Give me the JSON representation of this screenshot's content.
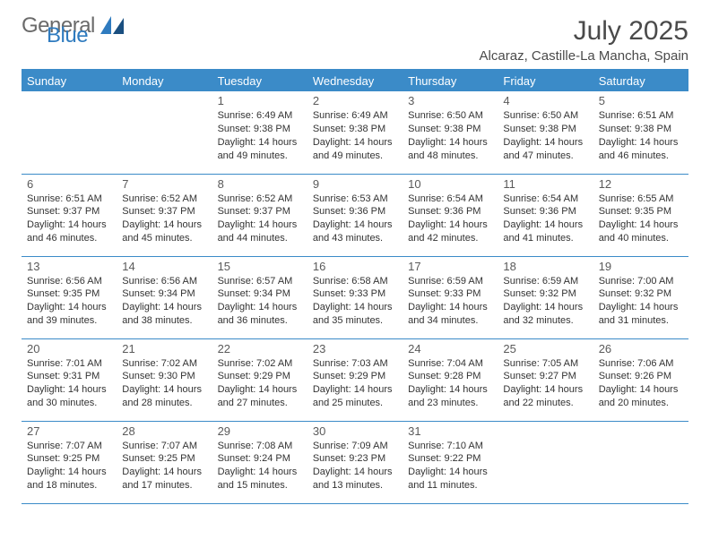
{
  "logo": {
    "text1": "General",
    "text2": "Blue"
  },
  "colors": {
    "accent": "#3b8bc8",
    "body_text": "#333333",
    "title_text": "#4a4a4a"
  },
  "title": "July 2025",
  "subtitle": "Alcaraz, Castille-La Mancha, Spain",
  "weekdays": [
    "Sunday",
    "Monday",
    "Tuesday",
    "Wednesday",
    "Thursday",
    "Friday",
    "Saturday"
  ],
  "weeks": [
    [
      null,
      null,
      {
        "n": "1",
        "sr": "Sunrise: 6:49 AM",
        "ss": "Sunset: 9:38 PM",
        "d1": "Daylight: 14 hours",
        "d2": "and 49 minutes."
      },
      {
        "n": "2",
        "sr": "Sunrise: 6:49 AM",
        "ss": "Sunset: 9:38 PM",
        "d1": "Daylight: 14 hours",
        "d2": "and 49 minutes."
      },
      {
        "n": "3",
        "sr": "Sunrise: 6:50 AM",
        "ss": "Sunset: 9:38 PM",
        "d1": "Daylight: 14 hours",
        "d2": "and 48 minutes."
      },
      {
        "n": "4",
        "sr": "Sunrise: 6:50 AM",
        "ss": "Sunset: 9:38 PM",
        "d1": "Daylight: 14 hours",
        "d2": "and 47 minutes."
      },
      {
        "n": "5",
        "sr": "Sunrise: 6:51 AM",
        "ss": "Sunset: 9:38 PM",
        "d1": "Daylight: 14 hours",
        "d2": "and 46 minutes."
      }
    ],
    [
      {
        "n": "6",
        "sr": "Sunrise: 6:51 AM",
        "ss": "Sunset: 9:37 PM",
        "d1": "Daylight: 14 hours",
        "d2": "and 46 minutes."
      },
      {
        "n": "7",
        "sr": "Sunrise: 6:52 AM",
        "ss": "Sunset: 9:37 PM",
        "d1": "Daylight: 14 hours",
        "d2": "and 45 minutes."
      },
      {
        "n": "8",
        "sr": "Sunrise: 6:52 AM",
        "ss": "Sunset: 9:37 PM",
        "d1": "Daylight: 14 hours",
        "d2": "and 44 minutes."
      },
      {
        "n": "9",
        "sr": "Sunrise: 6:53 AM",
        "ss": "Sunset: 9:36 PM",
        "d1": "Daylight: 14 hours",
        "d2": "and 43 minutes."
      },
      {
        "n": "10",
        "sr": "Sunrise: 6:54 AM",
        "ss": "Sunset: 9:36 PM",
        "d1": "Daylight: 14 hours",
        "d2": "and 42 minutes."
      },
      {
        "n": "11",
        "sr": "Sunrise: 6:54 AM",
        "ss": "Sunset: 9:36 PM",
        "d1": "Daylight: 14 hours",
        "d2": "and 41 minutes."
      },
      {
        "n": "12",
        "sr": "Sunrise: 6:55 AM",
        "ss": "Sunset: 9:35 PM",
        "d1": "Daylight: 14 hours",
        "d2": "and 40 minutes."
      }
    ],
    [
      {
        "n": "13",
        "sr": "Sunrise: 6:56 AM",
        "ss": "Sunset: 9:35 PM",
        "d1": "Daylight: 14 hours",
        "d2": "and 39 minutes."
      },
      {
        "n": "14",
        "sr": "Sunrise: 6:56 AM",
        "ss": "Sunset: 9:34 PM",
        "d1": "Daylight: 14 hours",
        "d2": "and 38 minutes."
      },
      {
        "n": "15",
        "sr": "Sunrise: 6:57 AM",
        "ss": "Sunset: 9:34 PM",
        "d1": "Daylight: 14 hours",
        "d2": "and 36 minutes."
      },
      {
        "n": "16",
        "sr": "Sunrise: 6:58 AM",
        "ss": "Sunset: 9:33 PM",
        "d1": "Daylight: 14 hours",
        "d2": "and 35 minutes."
      },
      {
        "n": "17",
        "sr": "Sunrise: 6:59 AM",
        "ss": "Sunset: 9:33 PM",
        "d1": "Daylight: 14 hours",
        "d2": "and 34 minutes."
      },
      {
        "n": "18",
        "sr": "Sunrise: 6:59 AM",
        "ss": "Sunset: 9:32 PM",
        "d1": "Daylight: 14 hours",
        "d2": "and 32 minutes."
      },
      {
        "n": "19",
        "sr": "Sunrise: 7:00 AM",
        "ss": "Sunset: 9:32 PM",
        "d1": "Daylight: 14 hours",
        "d2": "and 31 minutes."
      }
    ],
    [
      {
        "n": "20",
        "sr": "Sunrise: 7:01 AM",
        "ss": "Sunset: 9:31 PM",
        "d1": "Daylight: 14 hours",
        "d2": "and 30 minutes."
      },
      {
        "n": "21",
        "sr": "Sunrise: 7:02 AM",
        "ss": "Sunset: 9:30 PM",
        "d1": "Daylight: 14 hours",
        "d2": "and 28 minutes."
      },
      {
        "n": "22",
        "sr": "Sunrise: 7:02 AM",
        "ss": "Sunset: 9:29 PM",
        "d1": "Daylight: 14 hours",
        "d2": "and 27 minutes."
      },
      {
        "n": "23",
        "sr": "Sunrise: 7:03 AM",
        "ss": "Sunset: 9:29 PM",
        "d1": "Daylight: 14 hours",
        "d2": "and 25 minutes."
      },
      {
        "n": "24",
        "sr": "Sunrise: 7:04 AM",
        "ss": "Sunset: 9:28 PM",
        "d1": "Daylight: 14 hours",
        "d2": "and 23 minutes."
      },
      {
        "n": "25",
        "sr": "Sunrise: 7:05 AM",
        "ss": "Sunset: 9:27 PM",
        "d1": "Daylight: 14 hours",
        "d2": "and 22 minutes."
      },
      {
        "n": "26",
        "sr": "Sunrise: 7:06 AM",
        "ss": "Sunset: 9:26 PM",
        "d1": "Daylight: 14 hours",
        "d2": "and 20 minutes."
      }
    ],
    [
      {
        "n": "27",
        "sr": "Sunrise: 7:07 AM",
        "ss": "Sunset: 9:25 PM",
        "d1": "Daylight: 14 hours",
        "d2": "and 18 minutes."
      },
      {
        "n": "28",
        "sr": "Sunrise: 7:07 AM",
        "ss": "Sunset: 9:25 PM",
        "d1": "Daylight: 14 hours",
        "d2": "and 17 minutes."
      },
      {
        "n": "29",
        "sr": "Sunrise: 7:08 AM",
        "ss": "Sunset: 9:24 PM",
        "d1": "Daylight: 14 hours",
        "d2": "and 15 minutes."
      },
      {
        "n": "30",
        "sr": "Sunrise: 7:09 AM",
        "ss": "Sunset: 9:23 PM",
        "d1": "Daylight: 14 hours",
        "d2": "and 13 minutes."
      },
      {
        "n": "31",
        "sr": "Sunrise: 7:10 AM",
        "ss": "Sunset: 9:22 PM",
        "d1": "Daylight: 14 hours",
        "d2": "and 11 minutes."
      },
      null,
      null
    ]
  ]
}
